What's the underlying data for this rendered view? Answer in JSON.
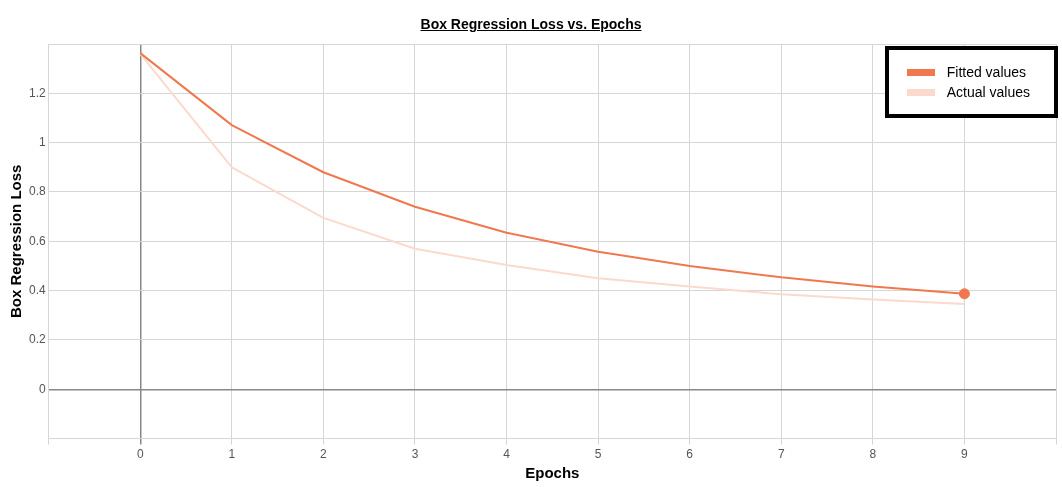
{
  "chart_data": {
    "type": "line",
    "title": "Box Regression Loss vs. Epochs",
    "xlabel": "Epochs",
    "ylabel": "Box Regression Loss",
    "xlim": [
      -1,
      10
    ],
    "xticks": [
      {
        "value": -1,
        "label": null
      },
      0,
      1,
      2,
      3,
      4,
      5,
      6,
      7,
      8,
      9,
      {
        "value": 10,
        "label": null
      }
    ],
    "ylim": [
      -0.2,
      1.4
    ],
    "yticks": [
      {
        "value": -0.2,
        "label": null
      },
      0,
      0.2,
      0.4,
      0.6,
      0.8,
      1,
      1.2,
      {
        "value": 1.4,
        "label": null
      }
    ],
    "grid": true,
    "legend": "top right",
    "marker": "none",
    "line_style": "solid",
    "series": [
      {
        "name": "Fitted values",
        "color": "#f0784f",
        "x": [
          0,
          1,
          2,
          3,
          4,
          5,
          6,
          7,
          8,
          9
        ],
        "values": [
          1.363,
          1.071,
          0.88,
          0.74,
          0.635,
          0.558,
          0.5,
          0.454,
          0.417,
          0.387
        ]
      },
      {
        "name": "Actual values",
        "color": "#fbdacd",
        "x": [
          0,
          1,
          2,
          3,
          4,
          5,
          6,
          7,
          8,
          9
        ],
        "values": [
          1.36,
          0.9,
          0.695,
          0.57,
          0.504,
          0.45,
          0.417,
          0.385,
          0.364,
          0.346
        ]
      },
      {
        "type": "scatter",
        "marker": "circle",
        "color": "#f0784f",
        "x": [
          9
        ],
        "values": [
          0.387
        ]
      }
    ]
  }
}
